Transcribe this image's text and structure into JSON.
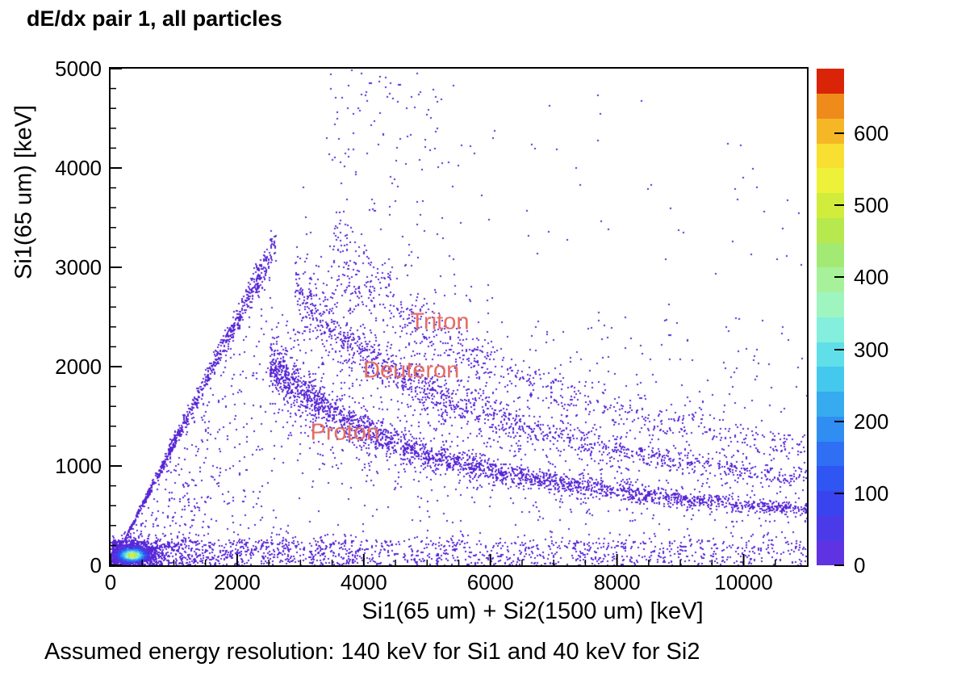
{
  "title": "dE/dx pair 1, all particles",
  "caption": "Assumed energy resolution: 140 keV for Si1 and 40 keV for Si2",
  "chart_data": {
    "type": "heatmap",
    "title": "dE/dx pair 1, all particles",
    "xlabel": "Si1(65 um) + Si2(1500 um) [keV]",
    "ylabel": "Si1(65 um) [keV]",
    "xlim": [
      0,
      11000
    ],
    "ylim": [
      0,
      5000
    ],
    "x_major_ticks": [
      0,
      2000,
      4000,
      6000,
      8000,
      10000
    ],
    "x_minor_step": 500,
    "y_major_ticks": [
      0,
      1000,
      2000,
      3000,
      4000,
      5000
    ],
    "y_minor_step": 200,
    "grid": false,
    "point_color": "#5826d6",
    "annotation_color": "#e46e63",
    "annotations": [
      {
        "label": "Triton",
        "x": 5200,
        "y": 2450
      },
      {
        "label": "Deuteron",
        "x": 4750,
        "y": 1960
      },
      {
        "label": "Proton",
        "x": 3700,
        "y": 1330
      }
    ],
    "colorbar": {
      "zmax": 690,
      "ticks": [
        0,
        100,
        200,
        300,
        400,
        500,
        600
      ],
      "palette": [
        "#5f33e1",
        "#4a3ae8",
        "#3a44ee",
        "#2f55f2",
        "#2f6ff4",
        "#308df2",
        "#36abf0",
        "#45c8ee",
        "#61dfe9",
        "#83efdc",
        "#9ff5c0",
        "#a8f19b",
        "#a3ea75",
        "#b7e94f",
        "#d2ec3c",
        "#eef139",
        "#f8df31",
        "#f6b727",
        "#ef8b1b",
        "#d92408"
      ]
    },
    "seed": 1234,
    "bands": [
      {
        "name": "proton",
        "C": 1860000,
        "p": 0.87,
        "x": [
          2500,
          11000
        ],
        "n": 2600,
        "spread": 0.1
      },
      {
        "name": "deuteron",
        "C": 2900000,
        "p": 0.87,
        "x": [
          2900,
          11000
        ],
        "n": 1500,
        "spread": 0.1
      },
      {
        "name": "triton",
        "C": 3900000,
        "p": 0.87,
        "x": [
          3500,
          11000
        ],
        "n": 800,
        "spread": 0.11
      }
    ],
    "halo_fraction": 0.22,
    "halo_mult": 3,
    "edge": {
      "n": 850,
      "x": [
        120,
        2600
      ],
      "slope": 1.25,
      "spread": 0.05
    },
    "regions": [
      {
        "name": "bottom-strip",
        "n": 1500,
        "x": [
          30,
          11000
        ],
        "xpow": 2.2,
        "y": [
          0,
          260
        ]
      },
      {
        "name": "bottom-thin",
        "n": 260,
        "x": [
          500,
          11000
        ],
        "xpow": 1,
        "y": [
          0,
          320
        ]
      },
      {
        "name": "mid-fill",
        "n": 520,
        "x": [
          1000,
          11000
        ],
        "xpow": 1,
        "y": [
          120,
          2500
        ],
        "cap_slope": 1.25
      },
      {
        "name": "left-wedge-fill",
        "n": 260,
        "x": [
          300,
          2600
        ],
        "xpow": 1,
        "y": [
          200,
          3100
        ],
        "cap_slope": 1.2
      },
      {
        "name": "upper-tail",
        "n": 130,
        "x": [
          3400,
          5500
        ],
        "xpow": 1,
        "y": [
          2700,
          5000
        ]
      },
      {
        "name": "upper-right-sparse",
        "n": 75,
        "x": [
          5500,
          11000
        ],
        "xpow": 1,
        "y": [
          1700,
          4800
        ]
      }
    ],
    "hotspot": {
      "cx": 330,
      "cy": 110,
      "halo": {
        "n": 950,
        "sx": 430,
        "sy": 135
      },
      "core": {
        "n": 800,
        "sx": 215,
        "sy": 68
      }
    }
  }
}
